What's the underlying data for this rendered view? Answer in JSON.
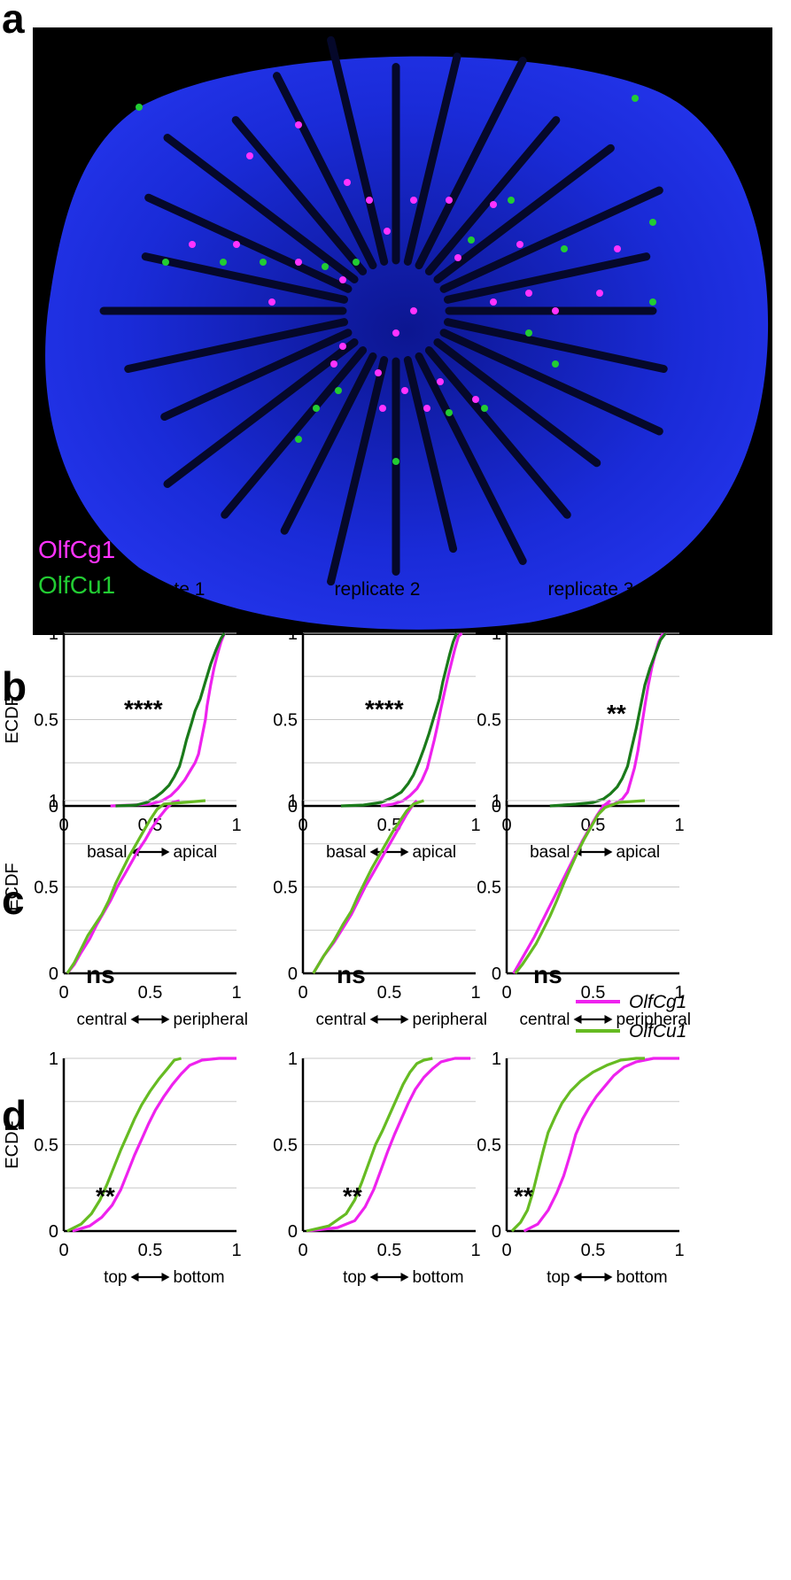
{
  "panels": {
    "a": "a",
    "b": "b",
    "c": "c",
    "d": "d"
  },
  "micrograph": {
    "label_1": "OlfCg1",
    "label_2": "OlfCu1",
    "color_1": "#ff33ff",
    "color_2": "#22cc33",
    "background": "#000000",
    "tissue_color": "#1a2bd8"
  },
  "column_titles": [
    "replicate 1",
    "replicate 2",
    "replicate 3"
  ],
  "legend": {
    "items": [
      "OlfCg1",
      "OlfCu1"
    ],
    "placement": "inside panel c, replicate 3, right"
  },
  "chart_data": [
    {
      "panel": "b",
      "type": "line",
      "ylabel": "ECDF",
      "xlim": [
        0,
        1
      ],
      "ylim": [
        0,
        1
      ],
      "x_ticks": [
        "0",
        "0.5",
        "1"
      ],
      "y_ticks": [
        "0",
        "0.5",
        "1"
      ],
      "axis_caption": {
        "left": "basal",
        "right": "apical"
      },
      "colors": [
        "#ee22ee",
        "#1a7a1a"
      ],
      "grid": true,
      "replicates": [
        {
          "significance": "****",
          "series": [
            {
              "name": "OlfCg1",
              "x": [
                0.27,
                0.4,
                0.5,
                0.57,
                0.62,
                0.66,
                0.7,
                0.73,
                0.76,
                0.78,
                0.8,
                0.82,
                0.83,
                0.85,
                0.87,
                0.89,
                0.91,
                0.93
              ],
              "y": [
                0,
                0.005,
                0.01,
                0.03,
                0.06,
                0.1,
                0.15,
                0.2,
                0.25,
                0.3,
                0.4,
                0.5,
                0.58,
                0.7,
                0.8,
                0.88,
                0.95,
                1
              ]
            },
            {
              "name": "OlfCu1",
              "x": [
                0.3,
                0.42,
                0.48,
                0.53,
                0.57,
                0.61,
                0.64,
                0.67,
                0.69,
                0.71,
                0.74,
                0.76,
                0.79,
                0.82,
                0.85,
                0.88,
                0.91,
                0.93
              ],
              "y": [
                0,
                0.005,
                0.02,
                0.05,
                0.08,
                0.12,
                0.17,
                0.23,
                0.3,
                0.38,
                0.48,
                0.55,
                0.62,
                0.72,
                0.82,
                0.9,
                0.97,
                1
              ]
            }
          ]
        },
        {
          "significance": "****",
          "series": [
            {
              "name": "OlfCg1",
              "x": [
                0.45,
                0.52,
                0.58,
                0.62,
                0.66,
                0.69,
                0.72,
                0.74,
                0.76,
                0.78,
                0.8,
                0.82,
                0.84,
                0.86,
                0.88,
                0.9,
                0.92
              ],
              "y": [
                0,
                0.01,
                0.03,
                0.06,
                0.1,
                0.15,
                0.22,
                0.3,
                0.38,
                0.47,
                0.57,
                0.66,
                0.75,
                0.83,
                0.91,
                0.98,
                1
              ]
            },
            {
              "name": "OlfCu1",
              "x": [
                0.22,
                0.35,
                0.45,
                0.52,
                0.57,
                0.61,
                0.64,
                0.67,
                0.7,
                0.73,
                0.76,
                0.79,
                0.81,
                0.83,
                0.85,
                0.87,
                0.89
              ],
              "y": [
                0,
                0.005,
                0.02,
                0.05,
                0.08,
                0.13,
                0.18,
                0.25,
                0.33,
                0.42,
                0.52,
                0.62,
                0.72,
                0.8,
                0.88,
                0.95,
                1
              ]
            }
          ]
        },
        {
          "significance": "**",
          "series": [
            {
              "name": "OlfCg1",
              "x": [
                0.55,
                0.62,
                0.67,
                0.7,
                0.72,
                0.74,
                0.76,
                0.78,
                0.8,
                0.82,
                0.84,
                0.86,
                0.88,
                0.9,
                0.92
              ],
              "y": [
                0,
                0.01,
                0.04,
                0.08,
                0.15,
                0.22,
                0.32,
                0.45,
                0.58,
                0.7,
                0.8,
                0.88,
                0.95,
                0.99,
                1
              ]
            },
            {
              "name": "OlfCu1",
              "x": [
                0.25,
                0.4,
                0.5,
                0.56,
                0.6,
                0.64,
                0.67,
                0.7,
                0.72,
                0.75,
                0.78,
                0.8,
                0.83,
                0.86,
                0.89,
                0.92
              ],
              "y": [
                0,
                0.01,
                0.02,
                0.04,
                0.07,
                0.11,
                0.16,
                0.23,
                0.32,
                0.45,
                0.6,
                0.7,
                0.8,
                0.88,
                0.96,
                1
              ]
            }
          ]
        }
      ]
    },
    {
      "panel": "c",
      "type": "line",
      "ylabel": "ECDF",
      "xlim": [
        0,
        1
      ],
      "ylim": [
        0,
        1
      ],
      "x_ticks": [
        "0",
        "0.5",
        "1"
      ],
      "y_ticks": [
        "0",
        "0.5",
        "1"
      ],
      "axis_caption": {
        "left": "central",
        "right": "peripheral"
      },
      "colors": [
        "#ee22ee",
        "#66bb22"
      ],
      "grid": true,
      "replicates": [
        {
          "significance": "ns",
          "series": [
            {
              "name": "OlfCg1",
              "x": [
                0.02,
                0.06,
                0.1,
                0.15,
                0.19,
                0.23,
                0.27,
                0.31,
                0.35,
                0.39,
                0.43,
                0.47,
                0.51,
                0.55,
                0.59,
                0.63,
                0.67
              ],
              "y": [
                0,
                0.05,
                0.12,
                0.2,
                0.28,
                0.35,
                0.42,
                0.5,
                0.57,
                0.64,
                0.71,
                0.77,
                0.84,
                0.9,
                0.95,
                0.99,
                1
              ]
            },
            {
              "name": "OlfCu1",
              "x": [
                0.02,
                0.06,
                0.1,
                0.14,
                0.18,
                0.22,
                0.26,
                0.3,
                0.34,
                0.38,
                0.42,
                0.46,
                0.5,
                0.54,
                0.58,
                0.7,
                0.82
              ],
              "y": [
                0,
                0.06,
                0.14,
                0.22,
                0.28,
                0.34,
                0.42,
                0.52,
                0.6,
                0.68,
                0.75,
                0.82,
                0.89,
                0.95,
                0.98,
                0.99,
                1
              ]
            }
          ]
        },
        {
          "significance": "ns",
          "series": [
            {
              "name": "OlfCg1",
              "x": [
                0.06,
                0.12,
                0.18,
                0.23,
                0.28,
                0.32,
                0.36,
                0.4,
                0.44,
                0.48,
                0.52,
                0.56,
                0.6,
                0.64,
                0.66
              ],
              "y": [
                0,
                0.1,
                0.18,
                0.26,
                0.34,
                0.42,
                0.5,
                0.57,
                0.64,
                0.71,
                0.78,
                0.85,
                0.92,
                0.98,
                1
              ]
            },
            {
              "name": "OlfCu1",
              "x": [
                0.06,
                0.12,
                0.18,
                0.23,
                0.28,
                0.32,
                0.36,
                0.4,
                0.44,
                0.48,
                0.52,
                0.56,
                0.6,
                0.64,
                0.7
              ],
              "y": [
                0,
                0.1,
                0.19,
                0.28,
                0.36,
                0.45,
                0.53,
                0.61,
                0.68,
                0.75,
                0.82,
                0.88,
                0.94,
                0.98,
                1
              ]
            }
          ]
        },
        {
          "significance": "ns",
          "series": [
            {
              "name": "OlfCg1",
              "x": [
                0.04,
                0.08,
                0.12,
                0.16,
                0.2,
                0.24,
                0.28,
                0.32,
                0.36,
                0.4,
                0.44,
                0.48,
                0.52,
                0.56,
                0.6
              ],
              "y": [
                0,
                0.07,
                0.14,
                0.21,
                0.29,
                0.37,
                0.45,
                0.53,
                0.61,
                0.69,
                0.77,
                0.84,
                0.91,
                0.97,
                1
              ]
            },
            {
              "name": "OlfCu1",
              "x": [
                0.05,
                0.09,
                0.13,
                0.17,
                0.21,
                0.25,
                0.29,
                0.33,
                0.37,
                0.41,
                0.45,
                0.49,
                0.53,
                0.57,
                0.65,
                0.8
              ],
              "y": [
                0,
                0.05,
                0.11,
                0.17,
                0.25,
                0.33,
                0.42,
                0.52,
                0.61,
                0.7,
                0.78,
                0.85,
                0.92,
                0.96,
                0.99,
                1
              ]
            }
          ]
        }
      ]
    },
    {
      "panel": "d",
      "type": "line",
      "ylabel": "ECDF",
      "xlim": [
        0,
        1
      ],
      "ylim": [
        0,
        1
      ],
      "x_ticks": [
        "0",
        "0.5",
        "1"
      ],
      "y_ticks": [
        "0",
        "0.5",
        "1"
      ],
      "axis_caption": {
        "left": "top",
        "right": "bottom"
      },
      "colors": [
        "#ee22ee",
        "#66bb22"
      ],
      "grid": true,
      "replicates": [
        {
          "significance": "**",
          "series": [
            {
              "name": "OlfCg1",
              "x": [
                0.05,
                0.15,
                0.22,
                0.28,
                0.33,
                0.37,
                0.41,
                0.45,
                0.49,
                0.53,
                0.58,
                0.63,
                0.68,
                0.73,
                0.8,
                0.9,
                1.0
              ],
              "y": [
                0,
                0.03,
                0.08,
                0.15,
                0.24,
                0.34,
                0.44,
                0.53,
                0.62,
                0.7,
                0.78,
                0.85,
                0.91,
                0.96,
                0.99,
                1,
                1
              ]
            },
            {
              "name": "OlfCu1",
              "x": [
                0.02,
                0.1,
                0.16,
                0.21,
                0.25,
                0.29,
                0.33,
                0.37,
                0.41,
                0.45,
                0.5,
                0.55,
                0.6,
                0.64,
                0.68
              ],
              "y": [
                0,
                0.04,
                0.1,
                0.18,
                0.27,
                0.37,
                0.47,
                0.56,
                0.65,
                0.73,
                0.81,
                0.88,
                0.94,
                0.99,
                1
              ]
            }
          ]
        },
        {
          "significance": "**",
          "series": [
            {
              "name": "OlfCg1",
              "x": [
                0.02,
                0.2,
                0.3,
                0.36,
                0.41,
                0.45,
                0.49,
                0.53,
                0.57,
                0.61,
                0.65,
                0.7,
                0.75,
                0.8,
                0.88,
                0.97
              ],
              "y": [
                0,
                0.02,
                0.06,
                0.14,
                0.24,
                0.35,
                0.46,
                0.56,
                0.65,
                0.74,
                0.82,
                0.89,
                0.94,
                0.98,
                1,
                1
              ]
            },
            {
              "name": "OlfCu1",
              "x": [
                0.02,
                0.15,
                0.25,
                0.3,
                0.34,
                0.38,
                0.42,
                0.46,
                0.5,
                0.54,
                0.58,
                0.62,
                0.66,
                0.7,
                0.75
              ],
              "y": [
                0,
                0.03,
                0.1,
                0.18,
                0.28,
                0.39,
                0.5,
                0.58,
                0.67,
                0.76,
                0.85,
                0.92,
                0.97,
                0.99,
                1
              ]
            }
          ]
        },
        {
          "significance": "**",
          "series": [
            {
              "name": "OlfCg1",
              "x": [
                0.1,
                0.18,
                0.24,
                0.29,
                0.33,
                0.37,
                0.4,
                0.44,
                0.48,
                0.52,
                0.57,
                0.62,
                0.68,
                0.75,
                0.85,
                1.0
              ],
              "y": [
                0,
                0.04,
                0.12,
                0.22,
                0.32,
                0.45,
                0.56,
                0.65,
                0.72,
                0.78,
                0.84,
                0.9,
                0.95,
                0.98,
                1,
                1
              ]
            },
            {
              "name": "OlfCu1",
              "x": [
                0.03,
                0.08,
                0.12,
                0.15,
                0.18,
                0.21,
                0.24,
                0.28,
                0.32,
                0.37,
                0.43,
                0.5,
                0.58,
                0.66,
                0.75,
                0.8
              ],
              "y": [
                0,
                0.05,
                0.12,
                0.22,
                0.34,
                0.46,
                0.57,
                0.66,
                0.74,
                0.81,
                0.87,
                0.92,
                0.96,
                0.99,
                1,
                1
              ]
            }
          ]
        }
      ]
    }
  ]
}
